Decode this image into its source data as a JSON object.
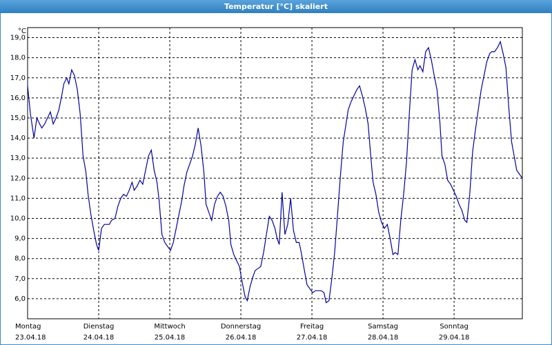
{
  "chart_data": {
    "type": "line",
    "title": "Temperatur [°C] skaliert",
    "ylabel": "°C",
    "xlim": [
      0,
      6.96
    ],
    "ylim": [
      5,
      19.5
    ],
    "yticks": [
      {
        "value": 6,
        "label": "6,0"
      },
      {
        "value": 7,
        "label": "7,0"
      },
      {
        "value": 8,
        "label": "8,0"
      },
      {
        "value": 9,
        "label": "9,0"
      },
      {
        "value": 10,
        "label": "10,0"
      },
      {
        "value": 11,
        "label": "11,0"
      },
      {
        "value": 12,
        "label": "12,0"
      },
      {
        "value": 13,
        "label": "13,0"
      },
      {
        "value": 14,
        "label": "14,0"
      },
      {
        "value": 15,
        "label": "15,0"
      },
      {
        "value": 16,
        "label": "16,0"
      },
      {
        "value": 17,
        "label": "17,0"
      },
      {
        "value": 18,
        "label": "18,0"
      },
      {
        "value": 19,
        "label": "19,0"
      }
    ],
    "xticks": [
      {
        "value": 0,
        "label": "Montag"
      },
      {
        "value": 1,
        "label": "Dienstag"
      },
      {
        "value": 2,
        "label": "Mittwoch"
      },
      {
        "value": 3,
        "label": "Donnerstag"
      },
      {
        "value": 4,
        "label": "Freitag"
      },
      {
        "value": 5,
        "label": "Samstag"
      },
      {
        "value": 6,
        "label": "Sonntag"
      }
    ],
    "xtick_dates": [
      "23.04.18",
      "24.04.18",
      "25.04.18",
      "26.04.18",
      "27.04.18",
      "28.04.18",
      "29.04.18"
    ],
    "grid": true,
    "x": [
      0,
      0.04,
      0.09,
      0.13,
      0.17,
      0.2,
      0.24,
      0.28,
      0.32,
      0.36,
      0.4,
      0.44,
      0.48,
      0.51,
      0.55,
      0.58,
      0.62,
      0.66,
      0.7,
      0.74,
      0.78,
      0.82,
      0.85,
      0.89,
      0.93,
      0.97,
      1.0,
      1.04,
      1.08,
      1.15,
      1.18,
      1.23,
      1.27,
      1.31,
      1.35,
      1.39,
      1.43,
      1.47,
      1.5,
      1.54,
      1.58,
      1.62,
      1.66,
      1.7,
      1.74,
      1.78,
      1.82,
      1.85,
      1.89,
      1.93,
      1.97,
      2.01,
      2.05,
      2.09,
      2.13,
      2.17,
      2.2,
      2.24,
      2.28,
      2.32,
      2.36,
      2.4,
      2.44,
      2.48,
      2.51,
      2.55,
      2.59,
      2.63,
      2.67,
      2.71,
      2.75,
      2.79,
      2.83,
      2.86,
      2.9,
      2.94,
      2.98,
      3.02,
      3.06,
      3.09,
      3.13,
      3.17,
      3.2,
      3.24,
      3.28,
      3.32,
      3.36,
      3.4,
      3.44,
      3.48,
      3.51,
      3.54,
      3.58,
      3.62,
      3.66,
      3.7,
      3.74,
      3.78,
      3.82,
      3.85,
      3.89,
      3.93,
      3.97,
      4.01,
      4.05,
      4.09,
      4.13,
      4.17,
      4.2,
      4.24,
      4.28,
      4.32,
      4.36,
      4.4,
      4.44,
      4.48,
      4.51,
      4.55,
      4.59,
      4.63,
      4.67,
      4.71,
      4.75,
      4.79,
      4.83,
      4.86,
      4.9,
      4.94,
      4.98,
      5.02,
      5.06,
      5.1,
      5.14,
      5.17,
      5.21,
      5.25,
      5.29,
      5.33,
      5.37,
      5.41,
      5.45,
      5.49,
      5.52,
      5.56,
      5.6,
      5.64,
      5.68,
      5.72,
      5.76,
      5.8,
      5.83,
      5.87,
      5.91,
      5.95,
      5.99,
      6.03,
      6.07,
      6.11,
      6.15,
      6.18,
      6.22,
      6.26,
      6.3,
      6.34,
      6.38,
      6.42,
      6.46,
      6.5,
      6.53,
      6.57,
      6.61,
      6.65,
      6.69,
      6.73,
      6.77,
      6.81,
      6.85,
      6.88,
      6.92,
      6.96
    ],
    "series": [
      {
        "name": "Temperatur",
        "color": "#0000a0",
        "values": [
          16.6,
          15.2,
          14.0,
          15.0,
          14.7,
          14.5,
          14.7,
          15.0,
          15.3,
          14.7,
          15.0,
          15.4,
          16.1,
          16.7,
          17.0,
          16.7,
          17.4,
          17.1,
          16.4,
          15.2,
          13.1,
          12.3,
          11.2,
          10.2,
          9.4,
          8.7,
          8.4,
          9.5,
          9.7,
          9.7,
          9.9,
          10.0,
          10.6,
          11.0,
          11.2,
          11.1,
          11.4,
          11.8,
          11.4,
          11.6,
          11.9,
          11.7,
          12.4,
          13.1,
          13.4,
          12.4,
          11.8,
          10.9,
          9.2,
          8.8,
          8.6,
          8.4,
          8.8,
          9.5,
          10.2,
          10.9,
          11.6,
          12.3,
          12.7,
          13.1,
          13.7,
          14.5,
          13.6,
          12.3,
          10.7,
          10.3,
          9.9,
          10.7,
          11.1,
          11.3,
          11.1,
          10.6,
          9.9,
          8.7,
          8.2,
          7.9,
          7.6,
          6.8,
          6.1,
          5.9,
          6.6,
          7.1,
          7.4,
          7.5,
          7.6,
          8.3,
          9.2,
          10.1,
          9.9,
          9.5,
          9.0,
          8.7,
          11.3,
          9.2,
          9.7,
          11.0,
          9.4,
          8.8,
          8.8,
          8.3,
          7.5,
          6.7,
          6.5,
          6.3,
          6.4,
          6.4,
          6.4,
          6.3,
          5.8,
          5.9,
          7.0,
          8.3,
          10.2,
          12.1,
          13.8,
          14.7,
          15.4,
          15.8,
          16.1,
          16.4,
          16.6,
          16.1,
          15.5,
          14.7,
          13.0,
          11.8,
          11.2,
          10.3,
          9.8,
          9.5,
          9.7,
          9.0,
          8.2,
          8.3,
          8.2,
          9.9,
          11.2,
          12.8,
          15.2,
          17.4,
          17.9,
          17.4,
          17.6,
          17.3,
          18.3,
          18.5,
          17.9,
          17.1,
          16.4,
          14.8,
          13.1,
          12.7,
          11.9,
          11.7,
          11.4,
          11.1,
          10.7,
          10.4,
          9.9,
          9.8,
          11.2,
          13.3,
          14.4,
          15.4,
          16.4,
          17.1,
          17.8,
          18.2,
          18.3,
          18.3,
          18.5,
          18.8,
          18.2,
          17.5,
          15.5,
          13.8,
          13.0,
          12.4,
          12.2,
          12.0
        ]
      }
    ]
  }
}
